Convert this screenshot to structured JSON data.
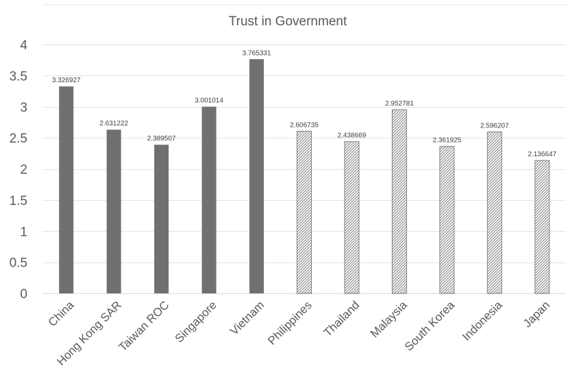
{
  "chart_data": {
    "type": "bar",
    "title": "Trust in Government",
    "xlabel": "",
    "ylabel": "",
    "ylim": [
      0,
      4
    ],
    "y_ticks": [
      "0",
      "0.5",
      "1",
      "1.5",
      "2",
      "2.5",
      "3",
      "3.5",
      "4"
    ],
    "grid": "horizontal",
    "legend": "none",
    "categories": [
      "China",
      "Hong Kong SAR",
      "Taiwan ROC",
      "Singapore",
      "Vietnam",
      "Philippines",
      "Thailand",
      "Malaysia",
      "South Korea",
      "Indonesia",
      "Japan"
    ],
    "values": [
      3.326927,
      2.631222,
      2.389507,
      3.001014,
      3.765331,
      2.606735,
      2.438669,
      2.952781,
      2.361925,
      2.596207,
      2.136647
    ],
    "value_labels": [
      "3.326927",
      "2.631222",
      "2.389507",
      "3.001014",
      "3.765331",
      "2.606735",
      "2.438669",
      "2.952781",
      "2.361925",
      "2.596207",
      "2.136647"
    ],
    "bar_styles": [
      "solid",
      "solid",
      "solid",
      "solid",
      "solid",
      "hatched",
      "hatched",
      "hatched",
      "hatched",
      "hatched",
      "hatched"
    ],
    "colors": {
      "solid_fill": "#707070",
      "hatch_stroke": "#7f7f7f",
      "hatch_background": "#ffffff",
      "grid": "#e3e3e3",
      "axis": "#d9d9d9",
      "text": "#595959",
      "data_label": "#404040"
    }
  }
}
